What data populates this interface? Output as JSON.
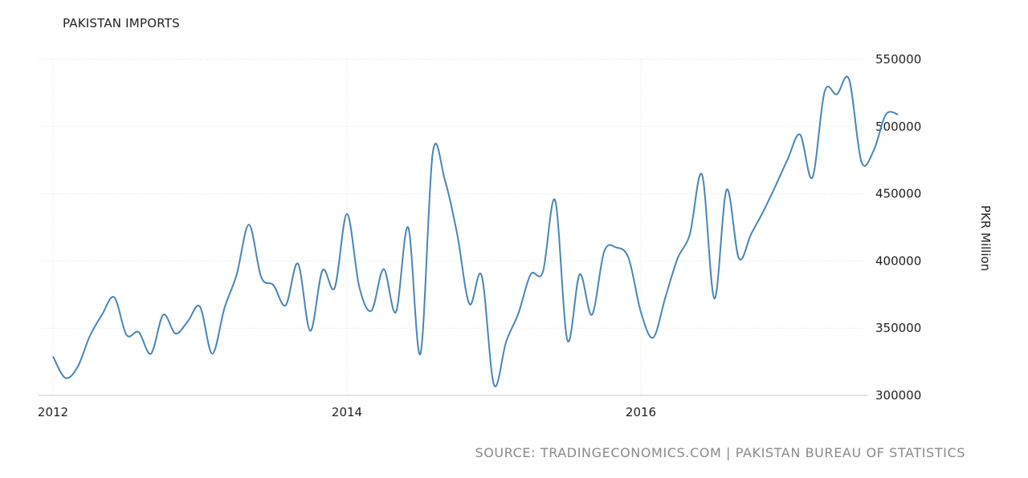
{
  "title": "PAKISTAN IMPORTS",
  "source": "SOURCE: TRADINGECONOMICS.COM | PAKISTAN BUREAU OF STATISTICS",
  "chart_data": {
    "type": "line",
    "title": "PAKISTAN IMPORTS",
    "xlabel": "",
    "ylabel": "PKR Million",
    "ylim": [
      300000,
      550000
    ],
    "yticks": [
      300000,
      350000,
      400000,
      450000,
      500000,
      550000
    ],
    "xticks": [
      "2012",
      "2014",
      "2016"
    ],
    "xlim": [
      "2012-01",
      "2017-10"
    ],
    "grid": true,
    "line_color": "#4a86b6",
    "series": [
      {
        "x": [
          "2012-01",
          "2012-02",
          "2012-03",
          "2012-04",
          "2012-05",
          "2012-06",
          "2012-07",
          "2012-08",
          "2012-09",
          "2012-10",
          "2012-11",
          "2012-12",
          "2013-01",
          "2013-02",
          "2013-03",
          "2013-04",
          "2013-05",
          "2013-06",
          "2013-07",
          "2013-08",
          "2013-09",
          "2013-10",
          "2013-11",
          "2013-12",
          "2014-01",
          "2014-02",
          "2014-03",
          "2014-04",
          "2014-05",
          "2014-06",
          "2014-07",
          "2014-08",
          "2014-09",
          "2014-10",
          "2014-11",
          "2014-12",
          "2015-01",
          "2015-02",
          "2015-03",
          "2015-04",
          "2015-05",
          "2015-06",
          "2015-07",
          "2015-08",
          "2015-09",
          "2015-10",
          "2015-11",
          "2015-12",
          "2016-01",
          "2016-02",
          "2016-03",
          "2016-04",
          "2016-05",
          "2016-06",
          "2016-07",
          "2016-08",
          "2016-09",
          "2016-10",
          "2016-11",
          "2016-12",
          "2017-01",
          "2017-02",
          "2017-03",
          "2017-04",
          "2017-05",
          "2017-06",
          "2017-07",
          "2017-08",
          "2017-09",
          "2017-10"
        ],
        "values": [
          329000,
          313000,
          321000,
          344000,
          360000,
          373000,
          345000,
          347000,
          331000,
          360000,
          346000,
          355000,
          366000,
          331000,
          365000,
          390000,
          427000,
          388000,
          382000,
          367000,
          398000,
          348000,
          393000,
          380000,
          435000,
          381000,
          363000,
          394000,
          362000,
          425000,
          331000,
          480000,
          460000,
          420000,
          368000,
          389000,
          308000,
          340000,
          361000,
          390000,
          392000,
          445000,
          341000,
          390000,
          360000,
          407000,
          410000,
          402000,
          362000,
          343000,
          373000,
          402000,
          420000,
          464000,
          372000,
          453000,
          402000,
          420000,
          437000,
          456000,
          476000,
          494000,
          462000,
          526000,
          524000,
          535000,
          474000,
          482000,
          509000,
          509000
        ]
      }
    ]
  }
}
